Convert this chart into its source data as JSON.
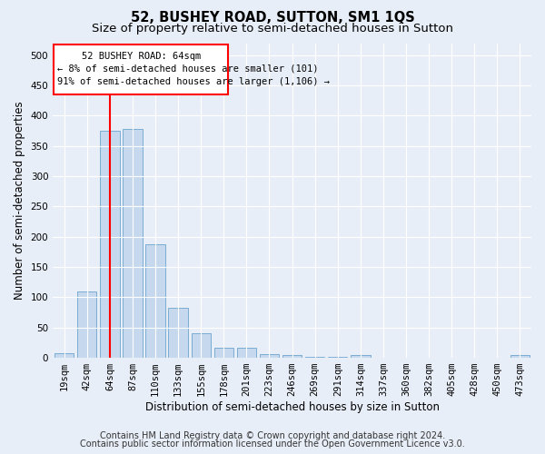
{
  "title": "52, BUSHEY ROAD, SUTTON, SM1 1QS",
  "subtitle": "Size of property relative to semi-detached houses in Sutton",
  "xlabel": "Distribution of semi-detached houses by size in Sutton",
  "ylabel": "Number of semi-detached properties",
  "footer_line1": "Contains HM Land Registry data © Crown copyright and database right 2024.",
  "footer_line2": "Contains public sector information licensed under the Open Government Licence v3.0.",
  "categories": [
    "19sqm",
    "42sqm",
    "64sqm",
    "87sqm",
    "110sqm",
    "133sqm",
    "155sqm",
    "178sqm",
    "201sqm",
    "223sqm",
    "246sqm",
    "269sqm",
    "291sqm",
    "314sqm",
    "337sqm",
    "360sqm",
    "382sqm",
    "405sqm",
    "428sqm",
    "450sqm",
    "473sqm"
  ],
  "values": [
    7,
    110,
    375,
    378,
    188,
    82,
    40,
    16,
    17,
    6,
    4,
    2,
    2,
    5,
    0,
    0,
    0,
    0,
    0,
    0,
    4
  ],
  "bar_color": "#c5d8ed",
  "bar_edge_color": "#7aadd4",
  "red_line_index": 2,
  "ylim": [
    0,
    520
  ],
  "yticks": [
    0,
    50,
    100,
    150,
    200,
    250,
    300,
    350,
    400,
    450,
    500
  ],
  "annotation_title": "52 BUSHEY ROAD: 64sqm",
  "annotation_line1": "← 8% of semi-detached houses are smaller (101)",
  "annotation_line2": "91% of semi-detached houses are larger (1,106) →",
  "background_color": "#e8eef7",
  "grid_color": "#ffffff",
  "title_fontsize": 10.5,
  "subtitle_fontsize": 9.5,
  "axis_label_fontsize": 8.5,
  "tick_fontsize": 7.5,
  "footer_fontsize": 7
}
